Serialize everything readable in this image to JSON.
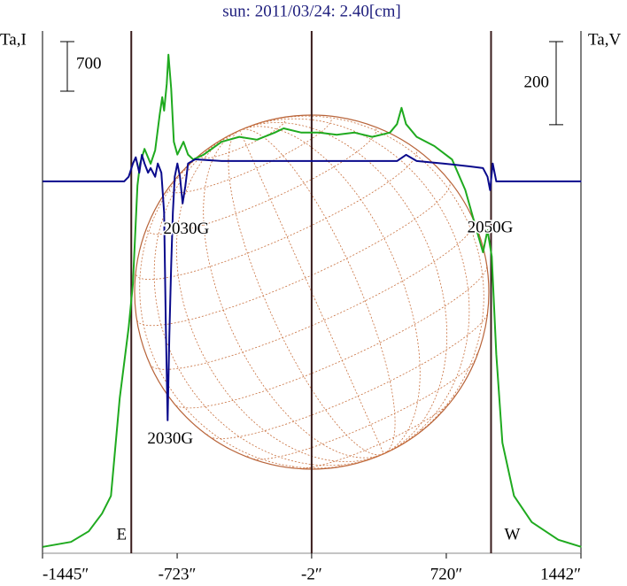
{
  "chart_data": {
    "type": "line",
    "title": "sun: 2011/03/24: 2.40[cm]",
    "y_label": "Ta,I",
    "y2_label": "Ta,V",
    "xlim": [
      -1445,
      1442
    ],
    "xticks": [
      {
        "value": -1445,
        "label": "-1445″"
      },
      {
        "value": -723,
        "label": "-723″"
      },
      {
        "value": -2,
        "label": "-2″"
      },
      {
        "value": 720,
        "label": "720″"
      },
      {
        "value": 1442,
        "label": "1442″"
      }
    ],
    "ylim": [
      0,
      7375
    ],
    "y2lim": [
      -895,
      362
    ],
    "series": [
      {
        "color": "#1faa1f",
        "x": [
          -1444,
          -1292,
          -1197,
          -1126,
          -1078,
          -1031,
          -983,
          -960,
          -936,
          -922,
          -898,
          -865,
          -841,
          -817,
          -803,
          -793,
          -779,
          -770,
          -755,
          -741,
          -722,
          -689,
          -665,
          -637,
          -580,
          -485,
          -390,
          -295,
          -200,
          -152,
          -57,
          38,
          133,
          228,
          323,
          418,
          456,
          480,
          504,
          561,
          656,
          751,
          822,
          869,
          917,
          941,
          964,
          988,
          1021,
          1083,
          1178,
          1321,
          1444
        ],
        "values": [
          90,
          160,
          310,
          560,
          810,
          2190,
          3190,
          3810,
          5190,
          5500,
          5710,
          5500,
          5690,
          6190,
          6440,
          6250,
          6630,
          7040,
          6560,
          5810,
          5630,
          5810,
          5630,
          5560,
          5630,
          5810,
          5880,
          5840,
          5940,
          6000,
          5940,
          5940,
          5910,
          5940,
          5880,
          5940,
          6060,
          6290,
          6060,
          5880,
          5750,
          5560,
          5130,
          4690,
          4250,
          4560,
          4190,
          2810,
          1560,
          810,
          440,
          190,
          90
        ]
      },
      {
        "color": "#0a0a8c",
        "axis": "y2",
        "x": [
          -1444,
          -1007,
          -983,
          -960,
          -945,
          -926,
          -912,
          -898,
          -879,
          -865,
          -841,
          -827,
          -808,
          -793,
          -784,
          -774,
          -765,
          -755,
          -746,
          -736,
          -722,
          -708,
          -694,
          -679,
          -665,
          -627,
          -485,
          -247,
          -10,
          228,
          456,
          504,
          561,
          703,
          846,
          917,
          941,
          955,
          969,
          988,
          1036,
          1444
        ],
        "values": [
          0,
          0,
          11,
          43,
          58,
          21,
          64,
          43,
          21,
          32,
          11,
          43,
          21,
          -75,
          -341,
          -575,
          -373,
          -202,
          -75,
          11,
          43,
          11,
          -53,
          -11,
          43,
          53,
          49,
          49,
          49,
          49,
          49,
          64,
          49,
          43,
          36,
          32,
          11,
          -21,
          43,
          0,
          0,
          0
        ]
      }
    ],
    "scale_bars": [
      {
        "value": 700
      },
      {
        "value": 200,
        "axis": "y2"
      }
    ],
    "markers": [
      {
        "x": -969,
        "label": "E"
      },
      {
        "x": -2
      },
      {
        "x": 960,
        "label": "W"
      }
    ],
    "annotations": [
      {
        "text": "2030G",
        "x": -674,
        "y": -117,
        "axis": "y2"
      },
      {
        "text": "2030G",
        "x": -760,
        "y": -622,
        "axis": "y2"
      },
      {
        "text": "2050G",
        "x": 955,
        "y": -113,
        "axis": "y2"
      }
    ]
  }
}
